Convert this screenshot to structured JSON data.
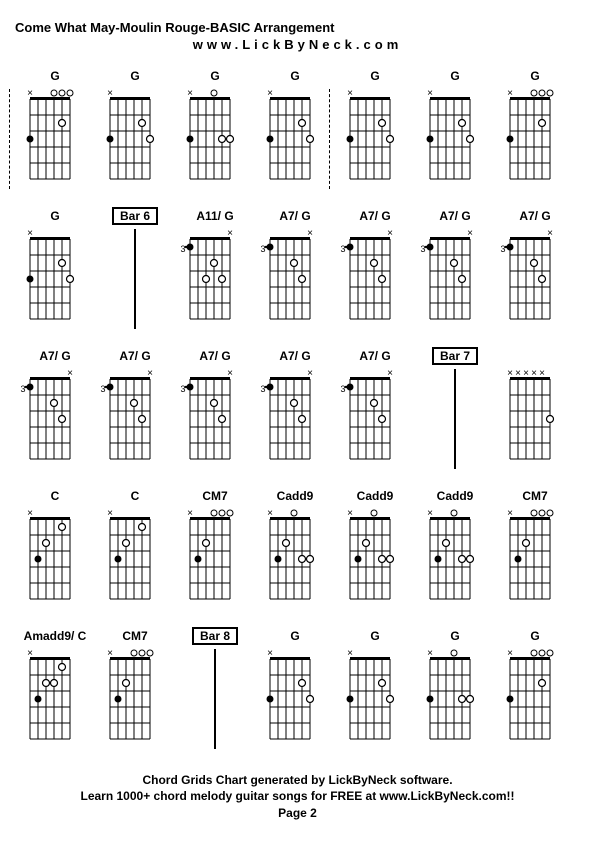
{
  "title": "Come What May-Moulin Rouge-BASIC Arrangement",
  "subtitle": "www.LickByNeck.com",
  "footer_line1": "Chord Grids Chart generated by LickByNeck software.",
  "footer_line2": "Learn 1000+ chord melody guitar songs for FREE at www.LickByNeck.com!!",
  "footer_page": "Page 2",
  "chord_diagram": {
    "grid_color": "#000000",
    "background_color": "#ffffff",
    "strings": 6,
    "frets": 5,
    "dot_color": "#000000",
    "open_color": "#ffffff",
    "mute_char": "×",
    "open_char": "○"
  },
  "chords": [
    {
      "label": "G",
      "boxed": false,
      "bracket": true,
      "type": "chord",
      "top": [
        "x",
        "",
        "",
        "o",
        "o",
        "o"
      ],
      "dots": [
        [
          3,
          1,
          "f"
        ],
        [
          2,
          5,
          "o"
        ]
      ],
      "fret_label": ""
    },
    {
      "label": "G",
      "boxed": false,
      "bracket": false,
      "type": "chord",
      "top": [
        "x",
        "",
        "",
        "",
        "",
        ""
      ],
      "dots": [
        [
          3,
          1,
          "f"
        ],
        [
          2,
          5,
          "o"
        ],
        [
          3,
          6,
          "o"
        ]
      ],
      "fret_label": ""
    },
    {
      "label": "G",
      "boxed": false,
      "bracket": false,
      "type": "chord",
      "top": [
        "x",
        "",
        "",
        "o",
        "",
        ""
      ],
      "dots": [
        [
          3,
          1,
          "f"
        ],
        [
          3,
          5,
          "o"
        ],
        [
          3,
          6,
          "o"
        ]
      ],
      "fret_label": ""
    },
    {
      "label": "G",
      "boxed": false,
      "bracket": false,
      "type": "chord",
      "top": [
        "x",
        "",
        "",
        "",
        "",
        ""
      ],
      "dots": [
        [
          3,
          1,
          "f"
        ],
        [
          2,
          5,
          "o"
        ],
        [
          3,
          6,
          "o"
        ]
      ],
      "fret_label": ""
    },
    {
      "label": "G",
      "boxed": false,
      "bracket": true,
      "type": "chord",
      "top": [
        "x",
        "",
        "",
        "",
        "",
        ""
      ],
      "dots": [
        [
          3,
          1,
          "f"
        ],
        [
          2,
          5,
          "o"
        ],
        [
          3,
          6,
          "o"
        ]
      ],
      "fret_label": ""
    },
    {
      "label": "G",
      "boxed": false,
      "bracket": false,
      "type": "chord",
      "top": [
        "x",
        "",
        "",
        "",
        "",
        ""
      ],
      "dots": [
        [
          3,
          1,
          "f"
        ],
        [
          2,
          5,
          "o"
        ],
        [
          3,
          6,
          "o"
        ]
      ],
      "fret_label": ""
    },
    {
      "label": "G",
      "boxed": false,
      "bracket": false,
      "type": "chord",
      "top": [
        "x",
        "",
        "",
        "o",
        "o",
        "o"
      ],
      "dots": [
        [
          3,
          1,
          "f"
        ],
        [
          2,
          5,
          "o"
        ]
      ],
      "fret_label": ""
    },
    {
      "label": "G",
      "boxed": false,
      "bracket": false,
      "type": "chord",
      "top": [
        "x",
        "",
        "",
        "",
        "",
        ""
      ],
      "dots": [
        [
          3,
          1,
          "f"
        ],
        [
          2,
          5,
          "o"
        ],
        [
          3,
          6,
          "o"
        ]
      ],
      "fret_label": ""
    },
    {
      "label": "Bar 6",
      "boxed": true,
      "type": "bar"
    },
    {
      "label": "A11/ G",
      "boxed": false,
      "bracket": false,
      "type": "chord",
      "top": [
        "",
        "",
        "",
        "",
        "",
        "x"
      ],
      "dots": [
        [
          1,
          1,
          "f"
        ],
        [
          3,
          3,
          "o"
        ],
        [
          2,
          4,
          "o"
        ],
        [
          3,
          5,
          "o"
        ]
      ],
      "fret_label": "3"
    },
    {
      "label": "A7/ G",
      "boxed": false,
      "bracket": false,
      "type": "chord",
      "top": [
        "",
        "",
        "",
        "",
        "",
        "x"
      ],
      "dots": [
        [
          1,
          1,
          "f"
        ],
        [
          2,
          4,
          "o"
        ],
        [
          3,
          5,
          "o"
        ]
      ],
      "fret_label": "3"
    },
    {
      "label": "A7/ G",
      "boxed": false,
      "bracket": false,
      "type": "chord",
      "top": [
        "",
        "",
        "",
        "",
        "",
        "x"
      ],
      "dots": [
        [
          1,
          1,
          "f"
        ],
        [
          2,
          4,
          "o"
        ],
        [
          3,
          5,
          "o"
        ]
      ],
      "fret_label": "3"
    },
    {
      "label": "A7/ G",
      "boxed": false,
      "bracket": false,
      "type": "chord",
      "top": [
        "",
        "",
        "",
        "",
        "",
        "x"
      ],
      "dots": [
        [
          1,
          1,
          "f"
        ],
        [
          2,
          4,
          "o"
        ],
        [
          3,
          5,
          "o"
        ]
      ],
      "fret_label": "3"
    },
    {
      "label": "A7/ G",
      "boxed": false,
      "bracket": false,
      "type": "chord",
      "top": [
        "",
        "",
        "",
        "",
        "",
        "x"
      ],
      "dots": [
        [
          1,
          1,
          "f"
        ],
        [
          2,
          4,
          "o"
        ],
        [
          3,
          5,
          "o"
        ]
      ],
      "fret_label": "3"
    },
    {
      "label": "A7/ G",
      "boxed": false,
      "bracket": false,
      "type": "chord",
      "top": [
        "",
        "",
        "",
        "",
        "",
        "x"
      ],
      "dots": [
        [
          1,
          1,
          "f"
        ],
        [
          2,
          4,
          "o"
        ],
        [
          3,
          5,
          "o"
        ]
      ],
      "fret_label": "3"
    },
    {
      "label": "A7/ G",
      "boxed": false,
      "bracket": false,
      "type": "chord",
      "top": [
        "",
        "",
        "",
        "",
        "",
        "x"
      ],
      "dots": [
        [
          1,
          1,
          "f"
        ],
        [
          2,
          4,
          "o"
        ],
        [
          3,
          5,
          "o"
        ]
      ],
      "fret_label": "3"
    },
    {
      "label": "A7/ G",
      "boxed": false,
      "bracket": false,
      "type": "chord",
      "top": [
        "",
        "",
        "",
        "",
        "",
        "x"
      ],
      "dots": [
        [
          1,
          1,
          "f"
        ],
        [
          2,
          4,
          "o"
        ],
        [
          3,
          5,
          "o"
        ]
      ],
      "fret_label": "3"
    },
    {
      "label": "A7/ G",
      "boxed": false,
      "bracket": false,
      "type": "chord",
      "top": [
        "",
        "",
        "",
        "",
        "",
        "x"
      ],
      "dots": [
        [
          1,
          1,
          "f"
        ],
        [
          2,
          4,
          "o"
        ],
        [
          3,
          5,
          "o"
        ]
      ],
      "fret_label": "3"
    },
    {
      "label": "A7/ G",
      "boxed": false,
      "bracket": false,
      "type": "chord",
      "top": [
        "",
        "",
        "",
        "",
        "",
        "x"
      ],
      "dots": [
        [
          1,
          1,
          "f"
        ],
        [
          2,
          4,
          "o"
        ],
        [
          3,
          5,
          "o"
        ]
      ],
      "fret_label": "3"
    },
    {
      "label": "Bar 7",
      "boxed": true,
      "type": "bar"
    },
    {
      "label": "",
      "boxed": false,
      "bracket": false,
      "type": "chord",
      "top": [
        "x",
        "x",
        "x",
        "x",
        "x",
        ""
      ],
      "dots": [
        [
          3,
          6,
          "o"
        ]
      ],
      "fret_label": ""
    },
    {
      "label": "C",
      "boxed": false,
      "bracket": false,
      "type": "chord",
      "top": [
        "x",
        "",
        "",
        "",
        "",
        ""
      ],
      "dots": [
        [
          3,
          2,
          "f"
        ],
        [
          2,
          3,
          "o"
        ],
        [
          1,
          5,
          "o"
        ]
      ],
      "fret_label": ""
    },
    {
      "label": "C",
      "boxed": false,
      "bracket": false,
      "type": "chord",
      "top": [
        "x",
        "",
        "",
        "",
        "",
        ""
      ],
      "dots": [
        [
          3,
          2,
          "f"
        ],
        [
          2,
          3,
          "o"
        ],
        [
          1,
          5,
          "o"
        ]
      ],
      "fret_label": ""
    },
    {
      "label": "CM7",
      "boxed": false,
      "bracket": false,
      "type": "chord",
      "top": [
        "x",
        "",
        "",
        "o",
        "o",
        "o"
      ],
      "dots": [
        [
          3,
          2,
          "f"
        ],
        [
          2,
          3,
          "o"
        ]
      ],
      "fret_label": ""
    },
    {
      "label": "Cadd9",
      "boxed": false,
      "bracket": false,
      "type": "chord",
      "top": [
        "x",
        "",
        "",
        "o",
        "",
        ""
      ],
      "dots": [
        [
          3,
          2,
          "f"
        ],
        [
          2,
          3,
          "o"
        ],
        [
          3,
          5,
          "o"
        ],
        [
          3,
          6,
          "o"
        ]
      ],
      "fret_label": ""
    },
    {
      "label": "Cadd9",
      "boxed": false,
      "bracket": false,
      "type": "chord",
      "top": [
        "x",
        "",
        "",
        "o",
        "",
        ""
      ],
      "dots": [
        [
          3,
          2,
          "f"
        ],
        [
          2,
          3,
          "o"
        ],
        [
          3,
          5,
          "o"
        ],
        [
          3,
          6,
          "o"
        ]
      ],
      "fret_label": ""
    },
    {
      "label": "Cadd9",
      "boxed": false,
      "bracket": false,
      "type": "chord",
      "top": [
        "x",
        "",
        "",
        "o",
        "",
        ""
      ],
      "dots": [
        [
          3,
          2,
          "f"
        ],
        [
          2,
          3,
          "o"
        ],
        [
          3,
          5,
          "o"
        ],
        [
          3,
          6,
          "o"
        ]
      ],
      "fret_label": ""
    },
    {
      "label": "CM7",
      "boxed": false,
      "bracket": false,
      "type": "chord",
      "top": [
        "x",
        "",
        "",
        "o",
        "o",
        "o"
      ],
      "dots": [
        [
          3,
          2,
          "f"
        ],
        [
          2,
          3,
          "o"
        ]
      ],
      "fret_label": ""
    },
    {
      "label": "Amadd9/ C",
      "boxed": false,
      "bracket": false,
      "type": "chord",
      "top": [
        "x",
        "",
        "",
        "",
        "",
        ""
      ],
      "dots": [
        [
          3,
          2,
          "f"
        ],
        [
          2,
          3,
          "o"
        ],
        [
          2,
          4,
          "o"
        ],
        [
          1,
          5,
          "o"
        ]
      ],
      "fret_label": ""
    },
    {
      "label": "CM7",
      "boxed": false,
      "bracket": false,
      "type": "chord",
      "top": [
        "x",
        "",
        "",
        "o",
        "o",
        "o"
      ],
      "dots": [
        [
          3,
          2,
          "f"
        ],
        [
          2,
          3,
          "o"
        ]
      ],
      "fret_label": ""
    },
    {
      "label": "Bar 8",
      "boxed": true,
      "type": "bar"
    },
    {
      "label": "G",
      "boxed": false,
      "bracket": false,
      "type": "chord",
      "top": [
        "x",
        "",
        "",
        "",
        "",
        ""
      ],
      "dots": [
        [
          3,
          1,
          "f"
        ],
        [
          2,
          5,
          "o"
        ],
        [
          3,
          6,
          "o"
        ]
      ],
      "fret_label": ""
    },
    {
      "label": "G",
      "boxed": false,
      "bracket": false,
      "type": "chord",
      "top": [
        "x",
        "",
        "",
        "",
        "",
        ""
      ],
      "dots": [
        [
          3,
          1,
          "f"
        ],
        [
          2,
          5,
          "o"
        ],
        [
          3,
          6,
          "o"
        ]
      ],
      "fret_label": ""
    },
    {
      "label": "G",
      "boxed": false,
      "bracket": false,
      "type": "chord",
      "top": [
        "x",
        "",
        "",
        "o",
        "",
        ""
      ],
      "dots": [
        [
          3,
          1,
          "f"
        ],
        [
          3,
          5,
          "o"
        ],
        [
          3,
          6,
          "o"
        ]
      ],
      "fret_label": ""
    },
    {
      "label": "G",
      "boxed": false,
      "bracket": false,
      "type": "chord",
      "top": [
        "x",
        "",
        "",
        "o",
        "o",
        "o"
      ],
      "dots": [
        [
          3,
          1,
          "f"
        ],
        [
          2,
          5,
          "o"
        ]
      ],
      "fret_label": ""
    }
  ]
}
